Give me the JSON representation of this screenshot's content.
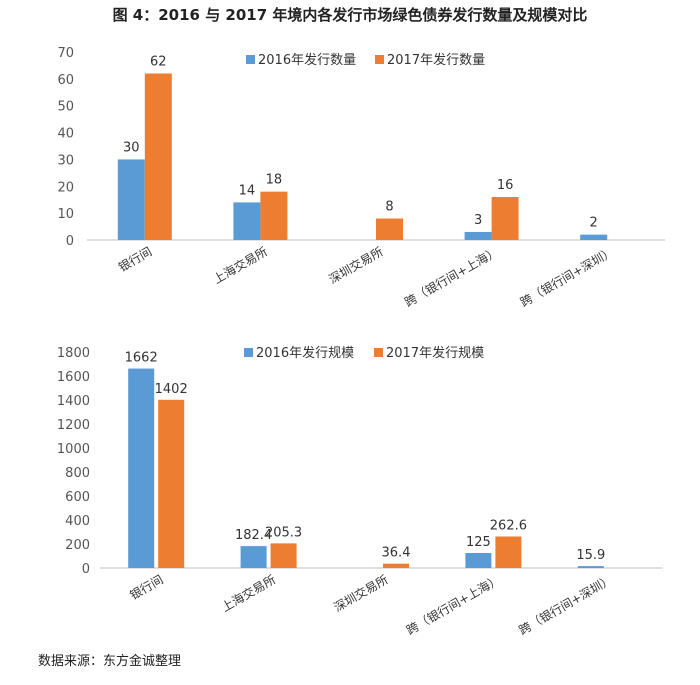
{
  "title": "图 4：2016 与 2017 年境内各发行市场绿色债券发行数量及规模对比",
  "source": "数据来源：东方金诚整理",
  "colors": {
    "s2016": "#5b9bd5",
    "s2017": "#ed7d31"
  },
  "chart_data": [
    {
      "type": "bar",
      "categories": [
        "银行间",
        "上海交易所",
        "深圳交易所",
        "跨（银行间+上海）",
        "跨（银行间+深圳）"
      ],
      "series": [
        {
          "name": "2016年发行数量",
          "values": [
            30,
            14,
            null,
            3,
            2
          ],
          "labels": [
            "30",
            "14",
            "",
            "3",
            "2"
          ]
        },
        {
          "name": "2017年发行数量",
          "values": [
            62,
            18,
            8,
            16,
            null
          ],
          "labels": [
            "62",
            "18",
            "8",
            "16",
            ""
          ]
        }
      ],
      "ylim": [
        0,
        70
      ],
      "yticks": [
        0,
        10,
        20,
        30,
        40,
        50,
        60,
        70
      ],
      "legend": "top"
    },
    {
      "type": "bar",
      "categories": [
        "银行间",
        "上海交易所",
        "深圳交易所",
        "跨（银行间+上海）",
        "跨（银行间+深圳）"
      ],
      "series": [
        {
          "name": "2016年发行规模",
          "values": [
            1662,
            182.4,
            null,
            125,
            15.9
          ],
          "labels": [
            "1662",
            "182.4",
            "",
            "125",
            "15.9"
          ]
        },
        {
          "name": "2017年发行规模",
          "values": [
            1402,
            205.3,
            36.4,
            262.6,
            null
          ],
          "labels": [
            "1402",
            "205.3",
            "36.4",
            "262.6",
            ""
          ]
        }
      ],
      "ylim": [
        0,
        1800
      ],
      "yticks": [
        0,
        200,
        400,
        600,
        800,
        1000,
        1200,
        1400,
        1600,
        1800
      ],
      "legend": "top"
    }
  ]
}
